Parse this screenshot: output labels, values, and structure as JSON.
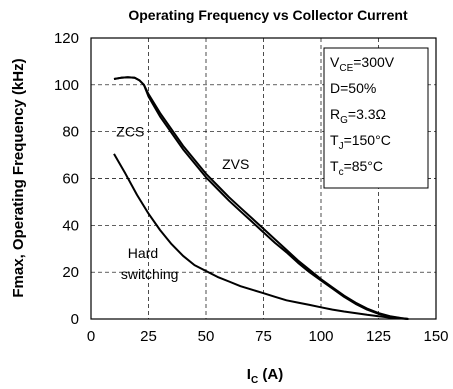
{
  "chart_data": {
    "type": "line",
    "title": "Operating Frequency vs Collector Current",
    "ylabel": "Fmax, Operating Frequency (kHz)",
    "xlabel": {
      "main": "I",
      "sub": "C",
      "unit": " (A)"
    },
    "xlim": [
      0,
      150
    ],
    "ylim": [
      0,
      120
    ],
    "xticks": [
      0,
      25,
      50,
      75,
      100,
      125,
      150
    ],
    "yticks": [
      0,
      20,
      40,
      60,
      80,
      100,
      120
    ],
    "grid": {
      "major": "dashed"
    },
    "series": [
      {
        "x": [
          10,
          13,
          16,
          19,
          21,
          23,
          25,
          30,
          35,
          40,
          45,
          50,
          55,
          60,
          65,
          70,
          75,
          80,
          85,
          90,
          95,
          100,
          105,
          110,
          115,
          120,
          125,
          130,
          135,
          138
        ],
        "y": [
          102.5,
          103,
          103.2,
          103,
          102,
          100,
          96,
          88,
          81,
          74,
          68,
          62,
          57,
          52,
          47.5,
          43,
          38.5,
          34,
          29.5,
          25,
          21,
          17,
          13.5,
          10,
          7,
          4.5,
          2.5,
          1.2,
          0.4,
          0
        ]
      },
      {
        "x": [
          10,
          13,
          16,
          19,
          21,
          23,
          25,
          30,
          35,
          40,
          45,
          50,
          55,
          60,
          65,
          70,
          75,
          80,
          85,
          90,
          95,
          100,
          105,
          110,
          115,
          120,
          125,
          130,
          135,
          138
        ],
        "y": [
          102.5,
          103,
          103.2,
          103,
          102,
          100,
          95,
          86.5,
          79.5,
          72.5,
          66.5,
          60.5,
          55.5,
          50.5,
          46,
          41.5,
          37,
          32.5,
          28.5,
          24,
          20,
          16.5,
          13,
          9.5,
          6.5,
          4,
          2.2,
          1,
          0.3,
          0
        ]
      },
      {
        "x": [
          10,
          15,
          20,
          25,
          30,
          35,
          40,
          45,
          50,
          55,
          60,
          65,
          70,
          75,
          80,
          85,
          90,
          95,
          100,
          105,
          110,
          115,
          120,
          125,
          130,
          135,
          138
        ],
        "y": [
          70.5,
          62,
          53,
          45,
          38,
          32,
          27,
          23,
          20.5,
          18,
          16,
          14,
          12.5,
          11,
          9.5,
          8,
          7,
          6,
          5,
          4,
          3.2,
          2.5,
          1.8,
          1.2,
          0.6,
          0.2,
          0
        ]
      }
    ],
    "annotations": [
      {
        "text": "ZCS",
        "x": 11,
        "y": 78
      },
      {
        "text": "ZVS",
        "x": 57,
        "y": 64
      },
      {
        "text": "Hard",
        "x": 16,
        "y": 26
      },
      {
        "text": "switching",
        "x": 13,
        "y": 17
      }
    ],
    "conditions_box": {
      "lines": [
        {
          "main": "V",
          "sub": "CE",
          "rest": "=300V"
        },
        {
          "main": "D=50%",
          "sub": "",
          "rest": ""
        },
        {
          "main": "R",
          "sub": "G",
          "rest": "=3.3Ω"
        },
        {
          "main": "T",
          "sub": "J",
          "rest": "=150°C"
        },
        {
          "main": "T",
          "sub": "c",
          "rest": "=85°C"
        }
      ]
    }
  }
}
